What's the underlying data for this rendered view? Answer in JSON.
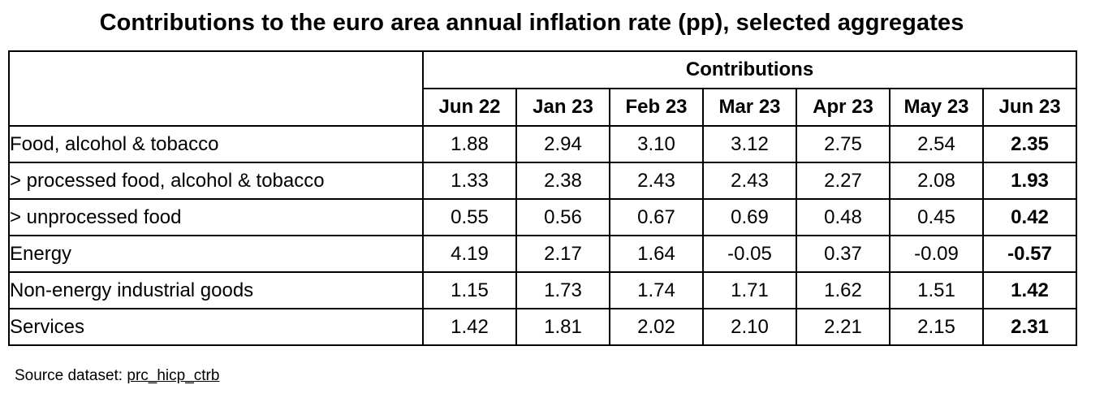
{
  "chart_data": {
    "type": "table",
    "title": "Contributions to the euro area annual inflation rate (pp), selected aggregates",
    "group_header": "Contributions",
    "columns": [
      "Jun 22",
      "Jan 23",
      "Feb 23",
      "Mar 23",
      "Apr 23",
      "May 23",
      "Jun 23"
    ],
    "rows": [
      {
        "label": "Food, alcohol & tobacco",
        "values": [
          "1.88",
          "2.94",
          "3.10",
          "3.12",
          "2.75",
          "2.54",
          "2.35"
        ]
      },
      {
        "label": "> processed food, alcohol & tobacco",
        "values": [
          "1.33",
          "2.38",
          "2.43",
          "2.43",
          "2.27",
          "2.08",
          "1.93"
        ]
      },
      {
        "label": "> unprocessed food",
        "values": [
          "0.55",
          "0.56",
          "0.67",
          "0.69",
          "0.48",
          "0.45",
          "0.42"
        ]
      },
      {
        "label": "Energy",
        "values": [
          "4.19",
          "2.17",
          "1.64",
          "-0.05",
          "0.37",
          "-0.09",
          "-0.57"
        ]
      },
      {
        "label": "Non-energy industrial goods",
        "values": [
          "1.15",
          "1.73",
          "1.74",
          "1.71",
          "1.62",
          "1.51",
          "1.42"
        ]
      },
      {
        "label": "Services",
        "values": [
          "1.42",
          "1.81",
          "2.02",
          "2.10",
          "2.21",
          "2.15",
          "2.31"
        ]
      }
    ],
    "highlighted_column": "Jun 23"
  },
  "source": {
    "prefix": "Source dataset: ",
    "link": "prc_hicp_ctrb"
  }
}
